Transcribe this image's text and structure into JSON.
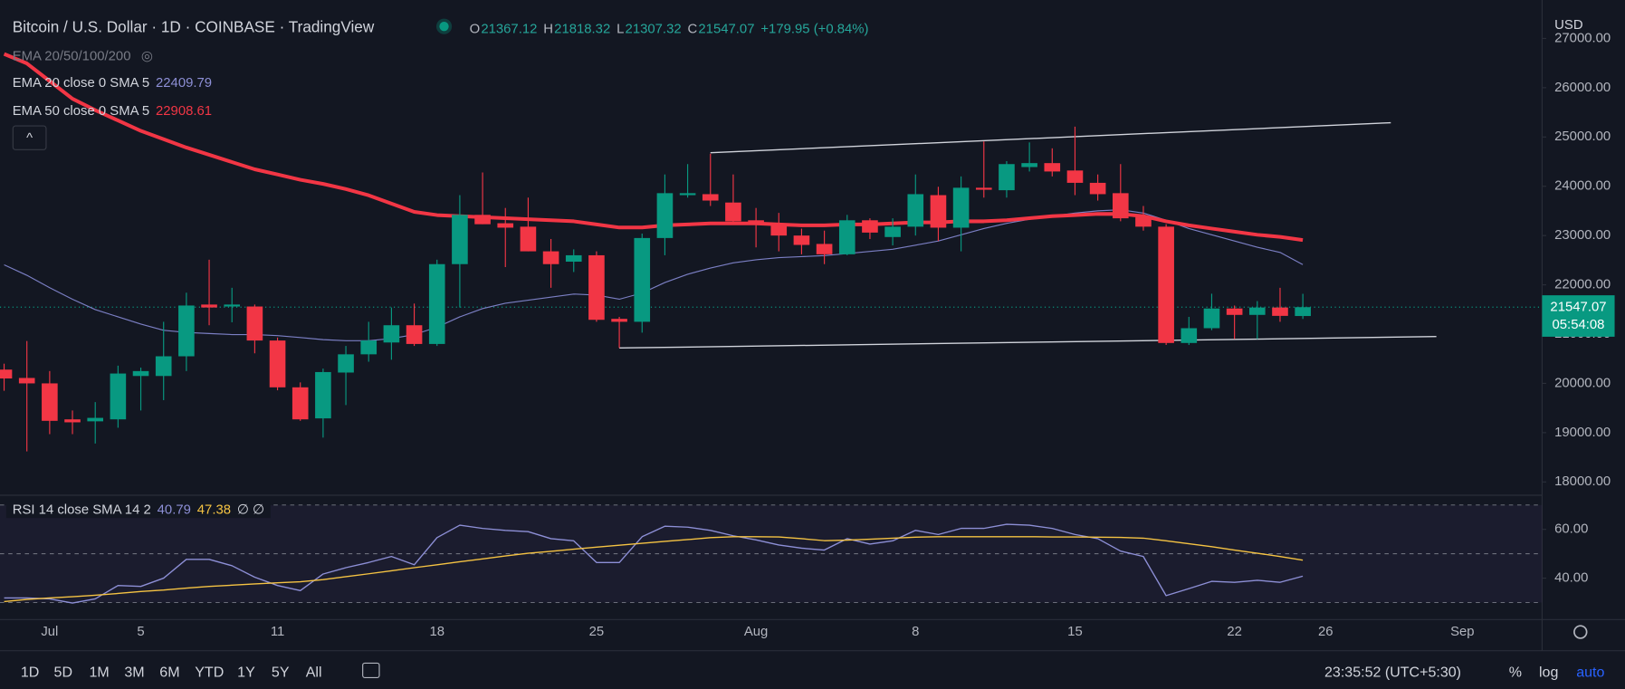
{
  "currency": "USD",
  "header": {
    "ohlc_letters": [
      "O",
      "H",
      "L",
      "C"
    ],
    "change": "+179.95 (+0.84%)"
  },
  "indicator_group": "EMA 20/50/100/200",
  "toolbar": {
    "timeframes": [
      "1D",
      "5D",
      "1M",
      "3M",
      "6M",
      "YTD",
      "1Y",
      "5Y",
      "All"
    ],
    "clock": "23:35:52 (UTC+5:30)",
    "options": [
      "%",
      "log",
      "auto"
    ]
  },
  "chart_data": {
    "type": "candlestick",
    "title": "Bitcoin / U.S. Dollar · 1D · COINBASE · TradingView",
    "categories": [
      null,
      null,
      "Jul",
      null,
      null,
      null,
      "5",
      null,
      null,
      null,
      null,
      null,
      "11",
      null,
      null,
      null,
      null,
      null,
      null,
      "18",
      null,
      null,
      null,
      null,
      null,
      null,
      "25",
      null,
      null,
      null,
      null,
      null,
      null,
      "Aug",
      null,
      null,
      null,
      null,
      null,
      null,
      "8",
      null,
      null,
      null,
      null,
      null,
      null,
      "15",
      null,
      null,
      null,
      null,
      null,
      null,
      "22",
      null,
      null,
      null,
      "26",
      null,
      null,
      null,
      null,
      null,
      "Sep"
    ],
    "open": [
      20280,
      20110,
      20000,
      19270,
      19230,
      19270,
      20150,
      20150,
      20550,
      21600,
      21560,
      21560,
      20870,
      19920,
      19290,
      20220,
      20590,
      20830,
      21180,
      20800,
      22420,
      23420,
      23250,
      23180,
      22680,
      22470,
      22600,
      21310,
      21250,
      22950,
      23820,
      23840,
      23670,
      23310,
      23250,
      23000,
      22830,
      22620,
      23310,
      22970,
      23180,
      23820,
      23160,
      23970,
      23920,
      24390,
      24470,
      24320,
      24070,
      23860,
      23370,
      23180,
      20820,
      21120,
      21520,
      21390,
      21540,
      21367.12,
      null,
      null,
      null,
      null,
      null,
      null,
      null
    ],
    "high": [
      20400,
      20860,
      20250,
      19450,
      19620,
      20360,
      20320,
      21250,
      21840,
      22510,
      21940,
      21600,
      20930,
      20020,
      20300,
      20760,
      21250,
      21540,
      21620,
      22510,
      23820,
      24280,
      23560,
      23770,
      22930,
      22720,
      22680,
      21350,
      23040,
      24240,
      24450,
      24660,
      24240,
      23560,
      23460,
      23140,
      23100,
      23420,
      23350,
      23350,
      24240,
      23990,
      24200,
      24910,
      24510,
      24890,
      24770,
      25210,
      24240,
      24450,
      23600,
      23230,
      21350,
      21820,
      21580,
      21670,
      21940,
      21818.32,
      null,
      null,
      null,
      null,
      null,
      null,
      null
    ],
    "low": [
      19850,
      18620,
      18970,
      18970,
      18780,
      19100,
      19450,
      19660,
      20250,
      21180,
      21240,
      20610,
      19860,
      19240,
      18900,
      19560,
      20440,
      20480,
      20760,
      20760,
      21540,
      23230,
      22360,
      22680,
      21940,
      22260,
      21250,
      20720,
      21030,
      22600,
      23770,
      23600,
      23230,
      22760,
      22680,
      22620,
      22420,
      22600,
      22930,
      22800,
      23000,
      22890,
      22680,
      23770,
      23770,
      24300,
      24200,
      23820,
      23710,
      23290,
      23100,
      20780,
      20780,
      21080,
      20900,
      20900,
      21250,
      21307.32,
      null,
      null,
      null,
      null,
      null,
      null,
      null
    ],
    "close": [
      20100,
      20000,
      19240,
      19210,
      19300,
      20200,
      20250,
      20550,
      21580,
      21540,
      21600,
      20870,
      19920,
      19270,
      20230,
      20590,
      20870,
      21180,
      20800,
      22420,
      23420,
      23230,
      23160,
      22680,
      22420,
      22600,
      21290,
      21250,
      22950,
      23860,
      23860,
      23710,
      23290,
      23230,
      23000,
      22810,
      22620,
      23310,
      23060,
      23180,
      23840,
      23160,
      23970,
      23930,
      24450,
      24470,
      24300,
      24070,
      23840,
      23350,
      23180,
      20820,
      21120,
      21520,
      21390,
      21540,
      21370,
      21547.07,
      null,
      null,
      null,
      null,
      null,
      null,
      null
    ],
    "up_color": "#089981",
    "down_color": "#f23645",
    "series": [
      {
        "name": "EMA 20 close 0 SMA 5",
        "color": "#7b7fc4",
        "values": [
          22405,
          22194,
          21941,
          21709,
          21498,
          21351,
          21203,
          21077,
          21034,
          21013,
          20992,
          20992,
          20971,
          20929,
          20887,
          20866,
          20866,
          20908,
          20992,
          21140,
          21351,
          21519,
          21625,
          21688,
          21751,
          21814,
          21793,
          21709,
          21835,
          22046,
          22215,
          22341,
          22446,
          22510,
          22552,
          22573,
          22594,
          22636,
          22678,
          22721,
          22805,
          22889,
          23016,
          23142,
          23248,
          23332,
          23395,
          23458,
          23501,
          23522,
          23458,
          23311,
          23142,
          23016,
          22889,
          22763,
          22658,
          22409.79,
          null,
          null,
          null,
          null,
          null,
          null,
          null
        ]
      },
      {
        "name": "EMA 50 close 0 SMA 5",
        "color": "#f23645",
        "values": [
          26684,
          26494,
          26136,
          25777,
          25545,
          25335,
          25124,
          24955,
          24787,
          24639,
          24492,
          24344,
          24239,
          24133,
          24049,
          23943,
          23817,
          23648,
          23480,
          23416,
          23395,
          23374,
          23353,
          23332,
          23311,
          23290,
          23227,
          23163,
          23163,
          23206,
          23227,
          23248,
          23248,
          23248,
          23227,
          23206,
          23206,
          23227,
          23227,
          23248,
          23269,
          23269,
          23290,
          23290,
          23311,
          23353,
          23395,
          23416,
          23438,
          23438,
          23395,
          23290,
          23206,
          23142,
          23079,
          23016,
          22974,
          22908.61,
          null,
          null,
          null,
          null,
          null,
          null,
          null
        ]
      }
    ],
    "xlim": [
      -0.18,
      67.5
    ],
    "ylim": [
      17730,
      27780
    ],
    "yticks": [
      {
        "value": 18000,
        "label": "18000.00"
      },
      {
        "value": 19000,
        "label": "19000.00"
      },
      {
        "value": 20000,
        "label": "20000.00"
      },
      {
        "value": 21000,
        "label": "21000.00"
      },
      {
        "value": 22000,
        "label": "22000.00"
      },
      {
        "value": 23000,
        "label": "23000.00"
      },
      {
        "value": 24000,
        "label": "24000.00"
      },
      {
        "value": 25000,
        "label": "25000.00"
      },
      {
        "value": 26000,
        "label": "26000.00"
      },
      {
        "value": 27000,
        "label": "27000.00"
      }
    ],
    "countdown": "05:54:08",
    "trendlines": [
      {
        "x": [
          31,
          60.86
        ],
        "y": [
          24680,
          25290
        ]
      },
      {
        "x": [
          27,
          62.86
        ],
        "y": [
          20718,
          20950
        ]
      }
    ],
    "rsi": {
      "name": "RSI 14 close SMA 14 2",
      "ylim": [
        23,
        74
      ],
      "yticks": [
        {
          "value": 40,
          "label": "40.00"
        },
        {
          "value": 60,
          "label": "60.00"
        }
      ],
      "bands": [
        30,
        50,
        70
      ],
      "suffix": "∅ ∅",
      "series": [
        {
          "color": "#8d8fd6",
          "values": [
            31.9,
            31.9,
            31.5,
            29.8,
            31.5,
            37.0,
            36.6,
            40.0,
            47.7,
            47.7,
            45.1,
            40.4,
            37.0,
            34.9,
            41.7,
            44.3,
            46.4,
            48.9,
            45.5,
            56.6,
            61.7,
            60.4,
            59.6,
            59.1,
            56.2,
            55.3,
            46.4,
            46.4,
            57.0,
            61.3,
            60.9,
            59.6,
            57.4,
            55.7,
            53.6,
            52.3,
            51.5,
            56.2,
            54.0,
            55.3,
            59.6,
            57.9,
            60.4,
            60.4,
            62.1,
            61.7,
            60.4,
            57.9,
            56.2,
            51.1,
            48.9,
            32.8,
            35.7,
            38.7,
            38.3,
            39.1,
            38.3,
            40.79,
            null,
            null,
            null,
            null,
            null,
            null,
            null
          ]
        },
        {
          "color": "#f5c343",
          "values": [
            30.4,
            31.3,
            31.9,
            32.4,
            33.0,
            33.7,
            34.5,
            35.1,
            35.9,
            36.6,
            37.1,
            37.6,
            38.1,
            38.5,
            39.4,
            40.6,
            41.8,
            43.0,
            44.3,
            45.5,
            46.7,
            47.9,
            49.1,
            50.2,
            51.0,
            51.9,
            52.7,
            53.5,
            54.3,
            55.1,
            55.8,
            56.6,
            57.0,
            57.0,
            56.9,
            56.2,
            55.4,
            55.6,
            56.0,
            56.4,
            56.8,
            57.0,
            57.0,
            57.0,
            57.0,
            57.0,
            56.9,
            56.9,
            56.8,
            56.7,
            56.4,
            55.3,
            54.1,
            52.9,
            51.5,
            50.2,
            48.9,
            47.38,
            null,
            null,
            null,
            null,
            null,
            null,
            null
          ]
        }
      ]
    }
  }
}
